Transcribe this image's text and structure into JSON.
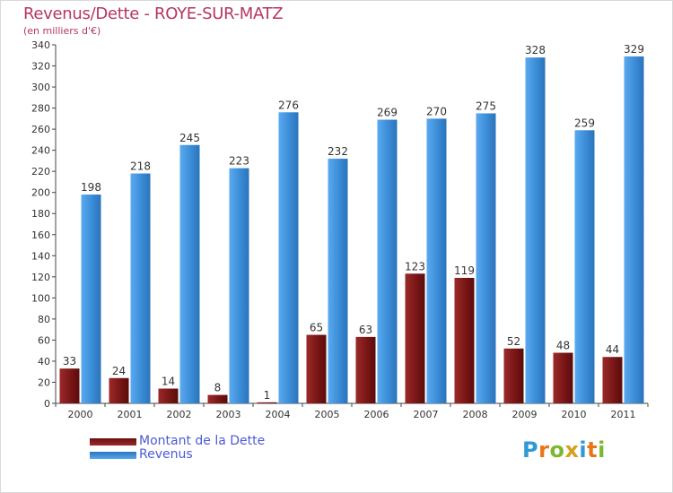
{
  "title": "Revenus/Dette - ROYE-SUR-MATZ",
  "subtitle": "(en milliers d'€)",
  "logo": {
    "text": "Proxiti",
    "letters": [
      "P",
      "r",
      "o",
      "x",
      "i",
      "t",
      "i"
    ],
    "colors": [
      "#2f9ad6",
      "#e8751a",
      "#7cb82f",
      "#d6a21a",
      "#2f9ad6",
      "#e8751a",
      "#7cb82f"
    ]
  },
  "colors": {
    "debt": "#8b1a1a",
    "revenue": "#3d8fd9",
    "text": "#333333",
    "title": "#b5365f",
    "legend_text": "#4b5bd6"
  },
  "chart_data": {
    "type": "bar",
    "categories": [
      "2000",
      "2001",
      "2002",
      "2003",
      "2004",
      "2005",
      "2006",
      "2007",
      "2008",
      "2009",
      "2010",
      "2011"
    ],
    "series": [
      {
        "name": "Montant de la Dette",
        "values": [
          33,
          24,
          14,
          8,
          1,
          65,
          63,
          123,
          119,
          52,
          48,
          44
        ]
      },
      {
        "name": "Revenus",
        "values": [
          198,
          218,
          245,
          223,
          276,
          232,
          269,
          270,
          275,
          328,
          259,
          329
        ]
      }
    ],
    "ylim": [
      0,
      340
    ],
    "yticks": [
      0,
      20,
      40,
      60,
      80,
      100,
      120,
      140,
      160,
      180,
      200,
      220,
      240,
      260,
      280,
      300,
      320,
      340
    ],
    "grid": false,
    "legend": "bottom-left"
  }
}
